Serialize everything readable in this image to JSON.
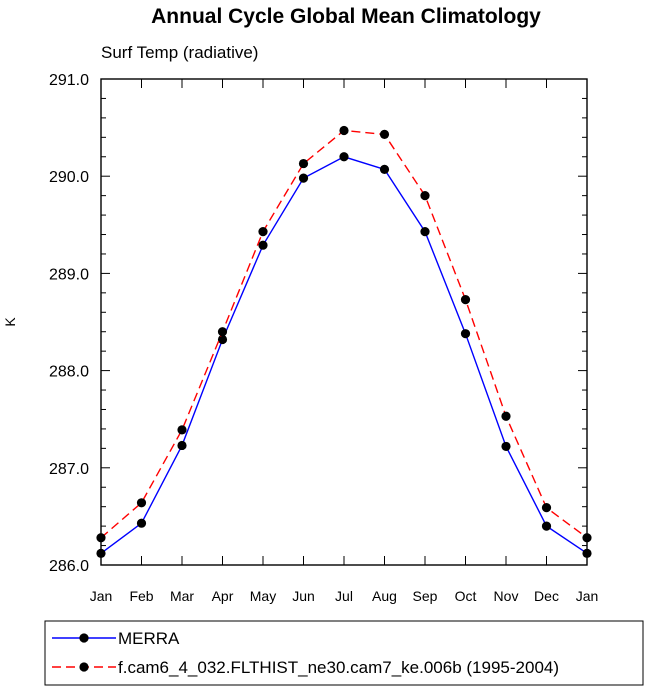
{
  "chart_data": {
    "type": "line",
    "title": "Annual Cycle Global Mean Climatology",
    "subtitle": "Surf Temp (radiative)",
    "xlabel": "",
    "ylabel": "K",
    "categories": [
      "Jan",
      "Feb",
      "Mar",
      "Apr",
      "May",
      "Jun",
      "Jul",
      "Aug",
      "Sep",
      "Oct",
      "Nov",
      "Dec",
      "Jan"
    ],
    "ylim": [
      286.0,
      291.0
    ],
    "yticks": [
      "286.0",
      "287.0",
      "288.0",
      "289.0",
      "290.0",
      "291.0"
    ],
    "grid": false,
    "legend_position": "bottom",
    "series": [
      {
        "name": "MERRA",
        "color": "#0000ff",
        "line_style": "solid",
        "marker": "filled-circle",
        "values": [
          286.12,
          286.43,
          287.23,
          288.32,
          289.29,
          289.98,
          290.2,
          290.07,
          289.43,
          288.38,
          287.22,
          286.4,
          286.12
        ]
      },
      {
        "name": "f.cam6_4_032.FLTHIST_ne30.cam7_ke.006b (1995-2004)",
        "color": "#ff0000",
        "line_style": "dashed",
        "marker": "filled-circle",
        "values": [
          286.28,
          286.64,
          287.39,
          288.4,
          289.43,
          290.13,
          290.47,
          290.43,
          289.8,
          288.73,
          287.53,
          286.59,
          286.28
        ]
      }
    ]
  }
}
